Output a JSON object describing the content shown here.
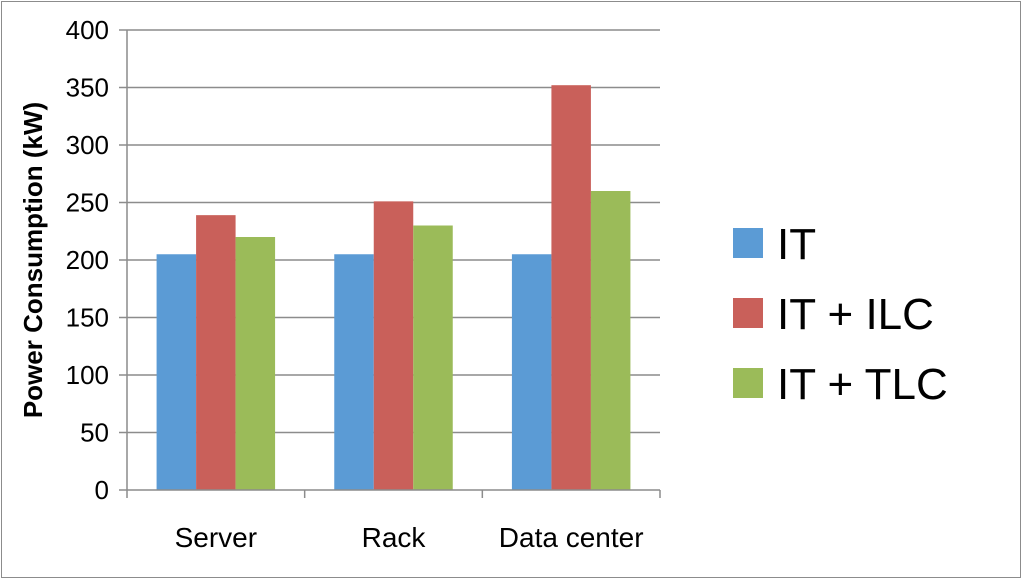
{
  "chart_data": {
    "type": "bar",
    "categories": [
      "Server",
      "Rack",
      "Data center"
    ],
    "series": [
      {
        "name": "IT",
        "color": "#5b9bd5",
        "values": [
          205,
          205,
          205
        ]
      },
      {
        "name": "IT + ILC",
        "color": "#c9605a",
        "values": [
          239,
          251,
          352
        ]
      },
      {
        "name": "IT + TLC",
        "color": "#9bbb59",
        "values": [
          220,
          230,
          260
        ]
      }
    ],
    "title": "",
    "xlabel": "",
    "ylabel": "Power Consumption (kW)",
    "ylim": [
      0,
      400
    ],
    "yticks": [
      0,
      50,
      100,
      150,
      200,
      250,
      300,
      350,
      400
    ],
    "grid": true,
    "legend_position": "right"
  }
}
